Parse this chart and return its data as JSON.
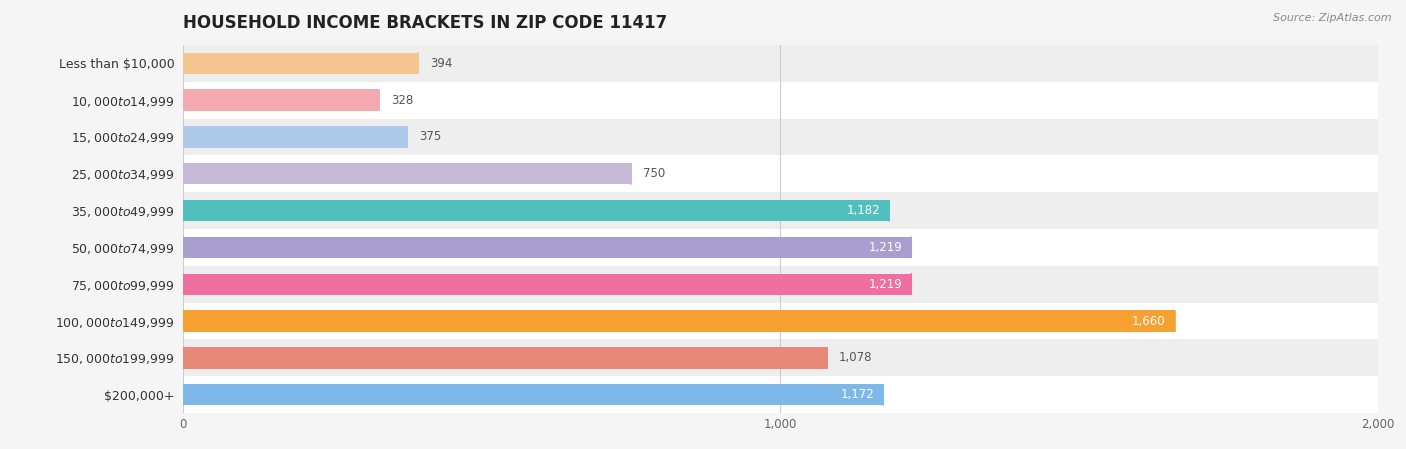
{
  "title": "HOUSEHOLD INCOME BRACKETS IN ZIP CODE 11417",
  "source": "Source: ZipAtlas.com",
  "categories": [
    "Less than $10,000",
    "$10,000 to $14,999",
    "$15,000 to $24,999",
    "$25,000 to $34,999",
    "$35,000 to $49,999",
    "$50,000 to $74,999",
    "$75,000 to $99,999",
    "$100,000 to $149,999",
    "$150,000 to $199,999",
    "$200,000+"
  ],
  "values": [
    394,
    328,
    375,
    750,
    1182,
    1219,
    1219,
    1660,
    1078,
    1172
  ],
  "colors": [
    "#F5C590",
    "#F4A8B0",
    "#AECAE8",
    "#C8B8D8",
    "#52BFBF",
    "#A89ED0",
    "#F06FA0",
    "#F5A030",
    "#E88878",
    "#7EB8E8"
  ],
  "xlim": [
    0,
    2000
  ],
  "xticks": [
    0,
    1000,
    2000
  ],
  "bar_height": 0.58,
  "background_color": "#f5f5f5",
  "row_bg_light": "#ffffff",
  "row_bg_dark": "#eeeeee",
  "label_fontsize": 9,
  "value_fontsize": 8.5,
  "title_fontsize": 12,
  "source_fontsize": 8,
  "inside_label_threshold": 1100
}
